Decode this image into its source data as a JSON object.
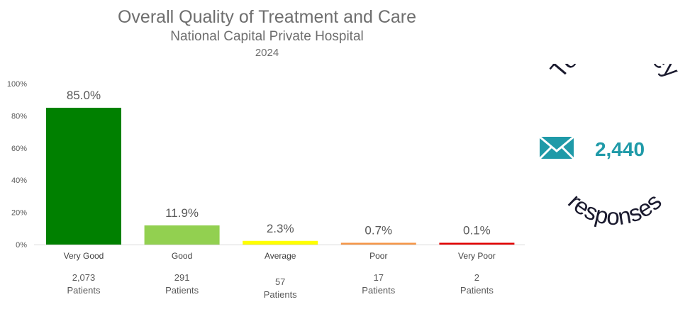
{
  "chart_data": {
    "type": "bar",
    "title": "Overall Quality of Treatment and Care",
    "subtitle": "National Capital Private Hospital",
    "year": "2024",
    "ylim": [
      0,
      100
    ],
    "yticks": [
      "0%",
      "20%",
      "40%",
      "60%",
      "80%",
      "100%"
    ],
    "categories": [
      "Very Good",
      "Good",
      "Average",
      "Poor",
      "Very Poor"
    ],
    "values": [
      85.0,
      11.9,
      2.3,
      0.7,
      0.1
    ],
    "data_labels": [
      "85.0%",
      "11.9%",
      "2.3%",
      "0.7%",
      "0.1%"
    ],
    "counts": [
      "2,073",
      "291",
      "57",
      "17",
      "2"
    ],
    "count_unit": "Patients",
    "colors": [
      "#008000",
      "#92d050",
      "#ffff00",
      "#f79646",
      "#e30000"
    ],
    "grid": false
  },
  "badge": {
    "top_text": "Total survey",
    "bottom_text": "responses",
    "value": "2,440",
    "icon": "envelope-icon",
    "value_color": "#1f9aa8",
    "icon_color": "#1f9aa8"
  }
}
